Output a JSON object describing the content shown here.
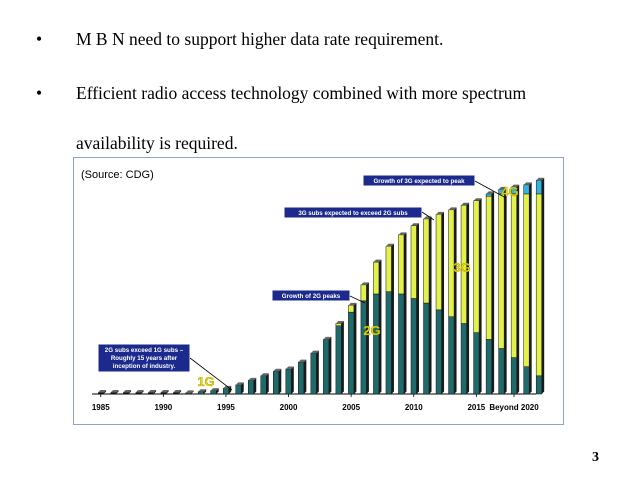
{
  "slide": {
    "bullets": [
      "M B N need to support higher data rate requirement.",
      "Efficient radio access technology combined with more spectrum"
    ],
    "bullet_continuation": "availability is required.",
    "bullet_symbol": "•",
    "page_number": "3"
  },
  "chart_data": {
    "type": "bar",
    "source_label": "(Source: CDG)",
    "x_tick_labels": [
      "1985",
      "1990",
      "1995",
      "2000",
      "2005",
      "2010",
      "2015",
      "Beyond 2020"
    ],
    "generation_labels": [
      "1G",
      "2G",
      "3G",
      "4G"
    ],
    "annotations": [
      "2G subs exceed 1G subs – Roughly 15 years after inception of industry.",
      "Growth of 2G peaks",
      "3G subs expected to exceed 2G subs",
      "Growth of 3G expected to peak"
    ],
    "categories": [
      "1985",
      "1986",
      "1987",
      "1988",
      "1989",
      "1990",
      "1991",
      "1992",
      "1993",
      "1994",
      "1995",
      "1996",
      "1997",
      "1998",
      "1999",
      "2000",
      "2001",
      "2002",
      "2003",
      "2004",
      "2005",
      "2006",
      "2007",
      "2008",
      "2009",
      "2010",
      "2011",
      "2012",
      "2013",
      "2014",
      "2015",
      "2016",
      "2017",
      "2018",
      "2019",
      "2020"
    ],
    "series": [
      {
        "values": [
          0,
          0,
          0,
          0,
          0,
          0,
          0,
          0,
          0,
          0,
          0,
          0,
          0,
          0,
          0,
          0,
          0,
          0,
          0,
          0,
          0,
          0,
          0,
          0,
          0,
          0,
          0,
          0,
          0,
          0,
          0,
          0,
          0,
          0,
          0,
          0
        ]
      },
      {
        "values": [
          0,
          0,
          0,
          0,
          0,
          0,
          0,
          0.5,
          1,
          1.5,
          2.5,
          4,
          6,
          8,
          10,
          11,
          14,
          18,
          24,
          30,
          36,
          41,
          44,
          45,
          44,
          42,
          40,
          37,
          34,
          31,
          27,
          24,
          20,
          16,
          12,
          8
        ]
      },
      {
        "values": [
          0,
          0,
          0,
          0,
          0,
          0,
          0,
          0,
          0,
          0,
          0,
          0,
          0,
          0,
          0,
          0,
          0,
          0,
          0,
          1,
          3,
          7,
          14,
          20,
          26,
          32,
          37,
          42,
          47,
          52,
          58,
          63,
          68,
          72,
          76,
          80
        ]
      },
      {
        "values": [
          0,
          0,
          0,
          0,
          0,
          0,
          0,
          0,
          0,
          0,
          0,
          0,
          0,
          0,
          0,
          0,
          0,
          0,
          0,
          0,
          0,
          0,
          0,
          0,
          0,
          0,
          0,
          0,
          0,
          0,
          0,
          1,
          2,
          3,
          4,
          6
        ]
      }
    ],
    "grid": false,
    "colors": {
      "1G": "#2a2a2a",
      "2G": "#1f6b6b",
      "3G": "#e2f24a",
      "4G": "#33b3e0",
      "annotation_bg": "#1c2a8e",
      "label": "#e8d800"
    }
  }
}
